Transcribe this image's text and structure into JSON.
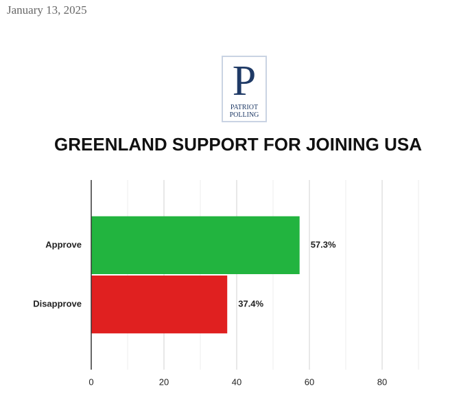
{
  "header": {
    "date": "January 13, 2025"
  },
  "logo": {
    "letter": "P",
    "name": "PATRIOT POLLING"
  },
  "chart_data": {
    "type": "hbar",
    "title": "GREENLAND SUPPORT FOR JOINING USA",
    "categories": [
      "Approve",
      "Disapprove"
    ],
    "values": [
      57.3,
      37.4
    ],
    "value_labels": [
      "57.3%",
      "37.4%"
    ],
    "colors": [
      "#22b43f",
      "#e02020"
    ],
    "xlim": [
      0,
      100
    ],
    "xticks": [
      0,
      20,
      40,
      60,
      80
    ],
    "minor_xticks": [
      10,
      30,
      50,
      70,
      90
    ],
    "grid": true
  }
}
